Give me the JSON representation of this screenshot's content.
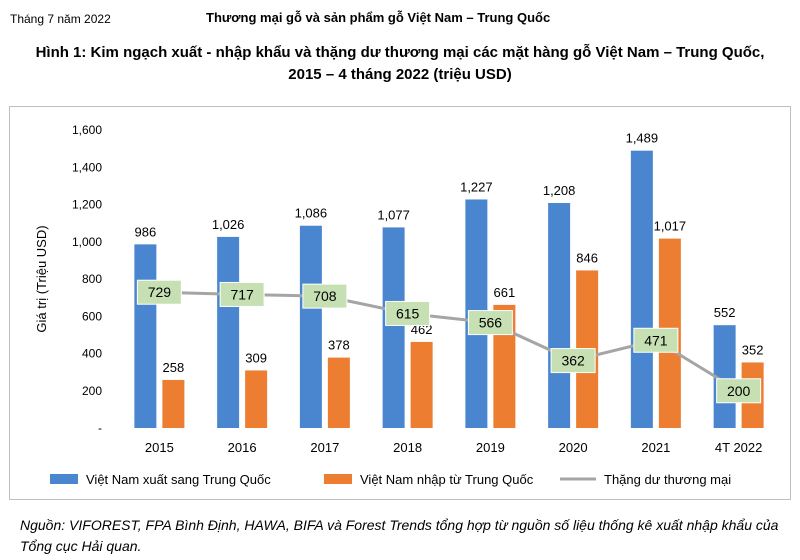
{
  "header": {
    "date": "Tháng 7 năm 2022",
    "title": "Thương mại gỗ và sản phẩm gỗ Việt Nam – Trung Quốc"
  },
  "figure": {
    "title_line1": "Hình 1: Kim ngạch xuất - nhập khẩu và thặng dư thương mại các mặt hàng gỗ Việt Nam – Trung Quốc,",
    "title_line2": "2015 – 4 tháng 2022 (triệu USD)"
  },
  "chart_data": {
    "type": "bar",
    "categories": [
      "2015",
      "2016",
      "2017",
      "2018",
      "2019",
      "2020",
      "2021",
      "4T 2022"
    ],
    "series": [
      {
        "name": "Việt Nam xuất sang Trung Quốc",
        "type": "bar",
        "color": "#4a86d0",
        "values": [
          986,
          1026,
          1086,
          1077,
          1227,
          1208,
          1489,
          552
        ],
        "labels": [
          "986",
          "1,026",
          "1,086",
          "1,077",
          "1,227",
          "1,208",
          "1,489",
          "552"
        ]
      },
      {
        "name": "Việt Nam nhập từ Trung Quốc",
        "type": "bar",
        "color": "#ed7d31",
        "values": [
          258,
          309,
          378,
          462,
          661,
          846,
          1017,
          352
        ],
        "labels": [
          "258",
          "309",
          "378",
          "462",
          "661",
          "846",
          "1,017",
          "352"
        ]
      },
      {
        "name": "Thặng dư thương mại",
        "type": "line",
        "color": "#a5a5a5",
        "values": [
          729,
          717,
          708,
          615,
          566,
          362,
          471,
          200
        ],
        "labels": [
          "729",
          "717",
          "708",
          "615",
          "566",
          "362",
          "471",
          "200"
        ]
      }
    ],
    "ylabel": "Giá trị (Triệu USD)",
    "ylim": [
      0,
      1600
    ],
    "yticks": [
      0,
      200,
      400,
      600,
      800,
      1000,
      1200,
      1400,
      1600
    ],
    "ytick_labels": [
      "-",
      "200",
      "400",
      "600",
      "800",
      "1,000",
      "1,200",
      "1,400",
      "1,600"
    ],
    "grid": false,
    "legend_position": "bottom",
    "label_box_color": "#c6e0b4"
  },
  "source": "Nguồn: VIFOREST, FPA Bình Định, HAWA, BIFA và Forest Trends tổng hợp từ nguồn số liệu thống kê xuất nhập khẩu của Tổng cục Hải quan."
}
